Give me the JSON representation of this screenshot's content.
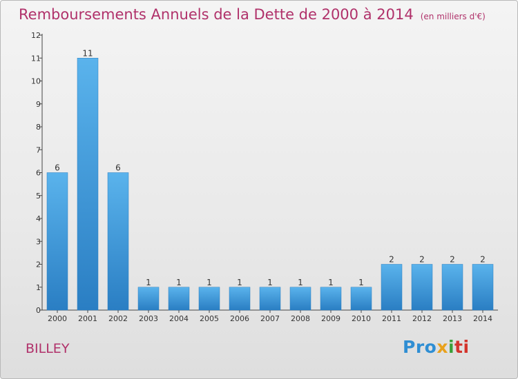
{
  "header": {
    "title": "Remboursements Annuels de la Dette de 2000 à 2014",
    "unit": "(en milliers d'€)"
  },
  "footer": {
    "commune": "BILLEY",
    "brand": [
      "Pro",
      "x",
      "i",
      "ti"
    ]
  },
  "colors": {
    "title": "#b0316a",
    "bar_top": "#5ab3ec",
    "bar_bottom": "#2a7ec3",
    "axis": "#444444",
    "text": "#333333"
  },
  "chart_data": {
    "type": "bar",
    "title": "Remboursements Annuels de la Dette de 2000 à 2014",
    "xlabel": "",
    "ylabel": "",
    "categories": [
      "2000",
      "2001",
      "2002",
      "2003",
      "2004",
      "2005",
      "2006",
      "2007",
      "2008",
      "2009",
      "2010",
      "2011",
      "2012",
      "2013",
      "2014"
    ],
    "values": [
      6,
      11,
      6,
      1,
      1,
      1,
      1,
      1,
      1,
      1,
      1,
      2,
      2,
      2,
      2
    ],
    "ylim": [
      0,
      12
    ],
    "yticks": [
      0,
      1,
      2,
      3,
      4,
      5,
      6,
      7,
      8,
      9,
      10,
      11,
      12
    ],
    "grid": false,
    "legend": "none"
  }
}
